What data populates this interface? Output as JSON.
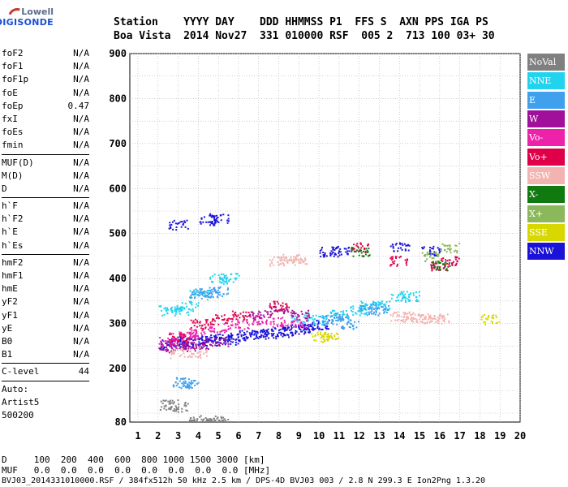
{
  "logo": {
    "line1": "Lowell",
    "line2": "DIGISONDE"
  },
  "header": {
    "row1": "Station    YYYY DAY    DDD HHMMSS P1  FFS S  AXN PPS IGA PS",
    "row2": "Boa Vista  2014 Nov27  331 010000 RSF  005 2  713 100 03+ 30"
  },
  "params": [
    {
      "key": "foF2",
      "value": "N/A"
    },
    {
      "key": "foF1",
      "value": "N/A"
    },
    {
      "key": "foF1p",
      "value": "N/A"
    },
    {
      "key": "foE",
      "value": "N/A"
    },
    {
      "key": "foEp",
      "value": "0.47"
    },
    {
      "key": "fxI",
      "value": "N/A"
    },
    {
      "key": "foEs",
      "value": "N/A"
    },
    {
      "key": "fmin",
      "value": "N/A"
    }
  ],
  "params2": [
    {
      "key": "MUF(D)",
      "value": "N/A"
    },
    {
      "key": "M(D)",
      "value": "N/A"
    },
    {
      "key": "D",
      "value": "N/A"
    }
  ],
  "params3": [
    {
      "key": "h`F",
      "value": "N/A"
    },
    {
      "key": "h`F2",
      "value": "N/A"
    },
    {
      "key": "h`E",
      "value": "N/A"
    },
    {
      "key": "h`Es",
      "value": "N/A"
    }
  ],
  "params4": [
    {
      "key": "hmF2",
      "value": "N/A"
    },
    {
      "key": "hmF1",
      "value": "N/A"
    },
    {
      "key": "hmE",
      "value": "N/A"
    },
    {
      "key": "yF2",
      "value": "N/A"
    },
    {
      "key": "yF1",
      "value": "N/A"
    },
    {
      "key": "yE",
      "value": "N/A"
    },
    {
      "key": "B0",
      "value": "N/A"
    },
    {
      "key": "B1",
      "value": "N/A"
    }
  ],
  "clevel": {
    "key": "C-level",
    "value": "44"
  },
  "auto": {
    "l1": "Auto:",
    "l2": "Artist5",
    "l3": "500200"
  },
  "legend": [
    {
      "label": "NoVal",
      "color": "#808080"
    },
    {
      "label": "NNE",
      "color": "#22d3f0"
    },
    {
      "label": "E",
      "color": "#3fa0ee"
    },
    {
      "label": "W",
      "color": "#a0109a"
    },
    {
      "label": "Vo-",
      "color": "#ee22aa"
    },
    {
      "label": "Vo+",
      "color": "#e0004a"
    },
    {
      "label": "SSW",
      "color": "#f2b4b0"
    },
    {
      "label": "X-",
      "color": "#107a10"
    },
    {
      "label": "X+",
      "color": "#8ab85a"
    },
    {
      "label": "SSE",
      "color": "#d8d800"
    },
    {
      "label": "NNW",
      "color": "#1b12d8"
    }
  ],
  "bottom": {
    "d_row": "D     100  200  400  600  800 1000 1500 3000 [km]",
    "muf_row": "MUF   0.0  0.0  0.0  0.0  0.0  0.0  0.0  0.0 [MHz]",
    "footer": "BVJ03_2014331010000.RSF / 384fx512h 50 kHz 2.5 km / DPS-4D BVJ03 003 / 2.8 N 299.3 E Ion2Png 1.3.20"
  },
  "chart_data": {
    "type": "scatter",
    "xlim": [
      1,
      20
    ],
    "ylim": [
      80,
      900
    ],
    "xticks": [
      "1",
      "2",
      "3",
      "4",
      "5",
      "6",
      "7",
      "8",
      "9",
      "10",
      "11",
      "12",
      "13",
      "14",
      "15",
      "16",
      "17",
      "18",
      "19",
      "20"
    ],
    "yticks": [
      "80",
      "200",
      "300",
      "400",
      "500",
      "600",
      "700",
      "800",
      "900"
    ],
    "grid": true,
    "legend_position": "right",
    "series": [
      {
        "name": "NNW",
        "points": [
          [
            2.5,
            255
          ],
          [
            3,
            262
          ],
          [
            3.5,
            258
          ],
          [
            4,
            265
          ],
          [
            4.5,
            262
          ],
          [
            5,
            268
          ],
          [
            5.5,
            265
          ],
          [
            6,
            272
          ],
          [
            6.5,
            275
          ],
          [
            7,
            278
          ],
          [
            7.5,
            278
          ],
          [
            8,
            282
          ],
          [
            8.5,
            285
          ],
          [
            9,
            288
          ],
          [
            9.5,
            292
          ],
          [
            10,
            298
          ],
          [
            10.5,
            460
          ],
          [
            11,
            462
          ],
          [
            14,
            470
          ],
          [
            15.5,
            462
          ],
          [
            4.5,
            530
          ],
          [
            5,
            535
          ],
          [
            3,
            520
          ]
        ]
      },
      {
        "name": "NNE",
        "points": [
          [
            2.5,
            330
          ],
          [
            3,
            330
          ],
          [
            3.5,
            340
          ],
          [
            4,
            365
          ],
          [
            5,
            400
          ],
          [
            5.5,
            402
          ],
          [
            9,
            315
          ],
          [
            10,
            310
          ],
          [
            11,
            320
          ],
          [
            12,
            330
          ],
          [
            12.5,
            340
          ],
          [
            13,
            340
          ],
          [
            14,
            360
          ],
          [
            14.5,
            362
          ]
        ]
      },
      {
        "name": "E",
        "points": [
          [
            3.2,
            170
          ],
          [
            3.5,
            168
          ],
          [
            4,
            368
          ],
          [
            4.5,
            370
          ],
          [
            5,
            372
          ],
          [
            10.5,
            310
          ],
          [
            11,
            315
          ],
          [
            11.5,
            300
          ],
          [
            12.5,
            330
          ],
          [
            13,
            335
          ]
        ]
      },
      {
        "name": "W",
        "points": [
          [
            2.5,
            248
          ],
          [
            3,
            252
          ],
          [
            3.5,
            250
          ],
          [
            4,
            255
          ],
          [
            5,
            260
          ],
          [
            7,
            320
          ],
          [
            8,
            330
          ],
          [
            9,
            320
          ]
        ]
      },
      {
        "name": "Vo-",
        "points": [
          [
            2.5,
            260
          ],
          [
            3,
            270
          ],
          [
            3.5,
            275
          ],
          [
            4,
            280
          ],
          [
            5,
            290
          ],
          [
            6,
            300
          ],
          [
            7,
            310
          ],
          [
            8,
            305
          ],
          [
            9,
            300
          ]
        ]
      },
      {
        "name": "Vo+",
        "points": [
          [
            3,
            268
          ],
          [
            4,
            300
          ],
          [
            5,
            310
          ],
          [
            6,
            320
          ],
          [
            8,
            340
          ],
          [
            12,
            470
          ],
          [
            14,
            440
          ],
          [
            16,
            430
          ],
          [
            16.5,
            440
          ]
        ]
      },
      {
        "name": "SSW",
        "points": [
          [
            8,
            440
          ],
          [
            8.5,
            445
          ],
          [
            9,
            440
          ],
          [
            14,
            318
          ],
          [
            14.5,
            315
          ],
          [
            15,
            312
          ],
          [
            15.5,
            310
          ],
          [
            16,
            312
          ],
          [
            3,
            235
          ],
          [
            4,
            236
          ]
        ]
      },
      {
        "name": "X-",
        "points": [
          [
            16,
            430
          ],
          [
            12,
            460
          ]
        ]
      },
      {
        "name": "X+",
        "points": [
          [
            16.5,
            470
          ],
          [
            15.5,
            450
          ]
        ]
      },
      {
        "name": "SSE",
        "points": [
          [
            10,
            272
          ],
          [
            10.5,
            270
          ],
          [
            18.5,
            310
          ]
        ]
      },
      {
        "name": "NoVal",
        "points": [
          [
            2.5,
            120
          ],
          [
            3,
            115
          ],
          [
            4,
            85
          ],
          [
            5,
            85
          ]
        ]
      }
    ]
  }
}
